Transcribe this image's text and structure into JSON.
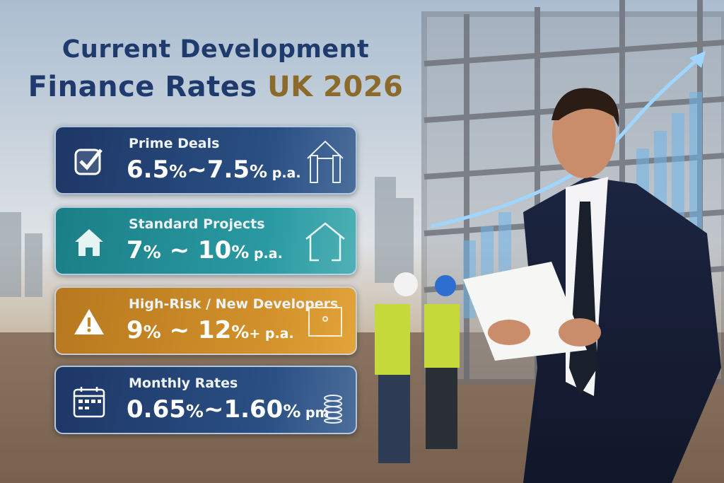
{
  "title": {
    "line1": "Current Development",
    "line2_main": "Finance Rates",
    "line2_accent": "UK 2026"
  },
  "colors": {
    "title": "#1f3b6e",
    "accent": "#8c6a2c",
    "prime": "#1d3766",
    "standard": "#1b7e86",
    "high_risk": "#c68523",
    "monthly": "#1d3766"
  },
  "cards": [
    {
      "label": "Prime Deals",
      "low": "6.5",
      "high": "7.5",
      "pct": "%",
      "sep": "~",
      "suffix": "",
      "unit": "p.a.",
      "icon": "checkbox-icon",
      "side_icon": "house-frame-icon"
    },
    {
      "label": "Standard Projects",
      "low": "7",
      "high": "10",
      "pct": "%",
      "sep": "~",
      "suffix": "",
      "unit": "p.a.",
      "icon": "house-icon",
      "side_icon": "house-outline-icon"
    },
    {
      "label": "High-Risk / New Developers",
      "low": "9",
      "high": "12",
      "pct": "%",
      "sep": "~",
      "suffix": "+",
      "unit": "p.a.",
      "icon": "warning-icon",
      "side_icon": "safe-icon"
    },
    {
      "label": "Monthly Rates",
      "low": "0.65",
      "high": "1.60",
      "pct": "%",
      "sep": "~",
      "suffix": "",
      "unit": "pm",
      "icon": "calendar-icon",
      "side_icon": "coins-icon"
    }
  ]
}
